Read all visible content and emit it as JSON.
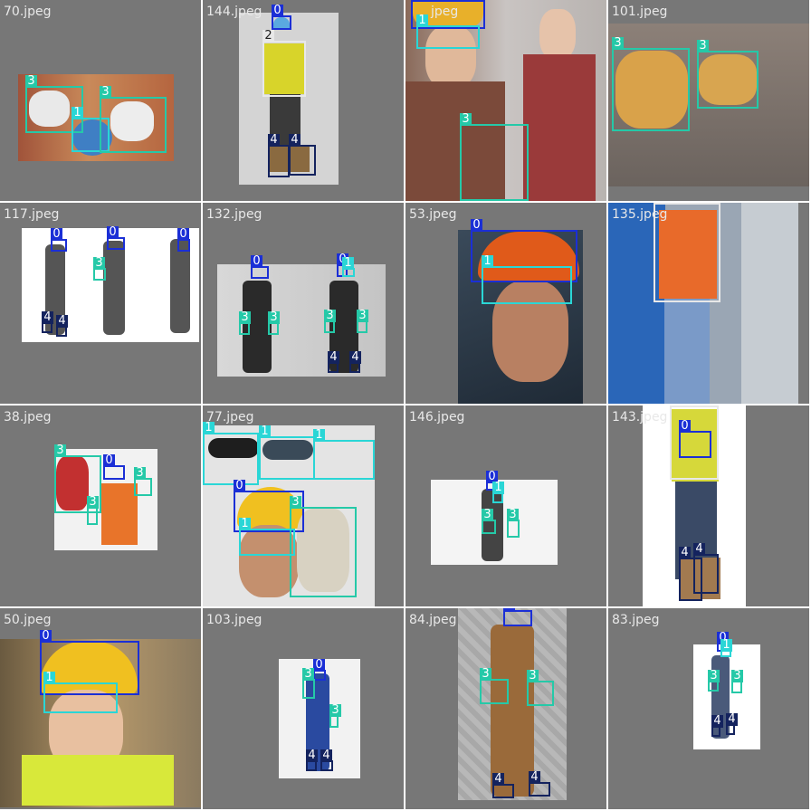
{
  "class_colors": {
    "0": "#1b2fd6",
    "1": "#2ad6d6",
    "2": "#e8e8e8",
    "3": "#25c9a8",
    "4": "#14235e"
  },
  "tiles": [
    {
      "label": "70.jpeg",
      "classes": [
        "3",
        "1",
        "3"
      ],
      "scene": "gloves-mask"
    },
    {
      "label": "144.jpeg",
      "classes": [
        "0",
        "2",
        "4",
        "4"
      ],
      "scene": "vest-worker"
    },
    {
      "label": "jpeg",
      "classes": [
        "0",
        "1",
        "3"
      ],
      "scene": "two-women"
    },
    {
      "label": "101.jpeg",
      "classes": [
        "3",
        "3"
      ],
      "scene": "gloves-closeup"
    },
    {
      "label": "117.jpeg",
      "classes": [
        "0",
        "0",
        "0",
        "3",
        "4",
        "4"
      ],
      "scene": "three-workers"
    },
    {
      "label": "132.jpeg",
      "classes": [
        "0",
        "0",
        "1",
        "3",
        "3",
        "3",
        "3",
        "4",
        "4"
      ],
      "scene": "two-workers"
    },
    {
      "label": "53.jpeg",
      "classes": [
        "0",
        "1"
      ],
      "scene": "orange-helmet"
    },
    {
      "label": "135.jpeg",
      "classes": [
        "2"
      ],
      "scene": "orange-vest"
    },
    {
      "label": "38.jpeg",
      "classes": [
        "3",
        "0",
        "3",
        "3"
      ],
      "scene": "gloves-product"
    },
    {
      "label": "77.jpeg",
      "classes": [
        "1",
        "1",
        "1",
        "0",
        "3",
        "1"
      ],
      "scene": "glasses-collage"
    },
    {
      "label": "146.jpeg",
      "classes": [
        "0",
        "1",
        "3",
        "3"
      ],
      "scene": "small-worker"
    },
    {
      "label": "143.jpeg",
      "classes": [
        "2",
        "0",
        "4",
        "4"
      ],
      "scene": "boots-worker"
    },
    {
      "label": "50.jpeg",
      "classes": [
        "0",
        "1"
      ],
      "scene": "woman-helmet"
    },
    {
      "label": "103.jpeg",
      "classes": [
        "0",
        "3",
        "3",
        "4",
        "4"
      ],
      "scene": "blue-worker"
    },
    {
      "label": "84.jpeg",
      "classes": [
        "0",
        "3",
        "3",
        "4",
        "4"
      ],
      "scene": "overalls-worker"
    },
    {
      "label": "83.jpeg",
      "classes": [
        "0",
        "1",
        "3",
        "3",
        "4",
        "4"
      ],
      "scene": "tiny-worker"
    }
  ]
}
